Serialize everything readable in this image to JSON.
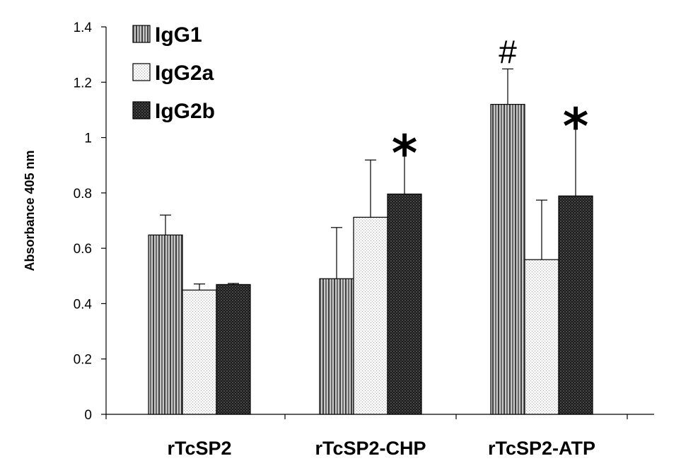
{
  "chart_data": {
    "type": "bar",
    "title": "",
    "xlabel": "",
    "ylabel": "Absorbance 405 nm",
    "ylim": [
      0,
      1.4
    ],
    "yticks": [
      {
        "value": 0,
        "label": "0"
      },
      {
        "value": 0.2,
        "label": "0.2"
      },
      {
        "value": 0.4,
        "label": "0.4"
      },
      {
        "value": 0.6,
        "label": "0.6"
      },
      {
        "value": 0.8,
        "label": "0.8"
      },
      {
        "value": 1.0,
        "label": "1"
      },
      {
        "value": 1.2,
        "label": "1.2"
      },
      {
        "value": 1.4,
        "label": "1.4"
      }
    ],
    "categories": [
      "rTcSP2",
      "rTcSP2-CHP",
      "rTcSP2-ATP"
    ],
    "series": [
      {
        "name": "IgG1",
        "pattern": "vertical-stripes",
        "values": [
          0.648,
          0.49,
          1.12
        ],
        "errors": [
          0.072,
          0.185,
          0.128
        ]
      },
      {
        "name": "IgG2a",
        "pattern": "light-dots",
        "values": [
          0.449,
          0.712,
          0.559
        ],
        "errors": [
          0.022,
          0.207,
          0.215
        ]
      },
      {
        "name": "IgG2b",
        "pattern": "dark-checker",
        "values": [
          0.469,
          0.796,
          0.789
        ],
        "errors": [
          0.004,
          0.188,
          0.292
        ]
      }
    ],
    "annotations": [
      {
        "text": "*",
        "category": 1,
        "series": 2
      },
      {
        "text": "#",
        "category": 2,
        "series": 0
      },
      {
        "text": "*",
        "category": 2,
        "series": 2
      }
    ],
    "legend": "top-left",
    "grid": false
  }
}
